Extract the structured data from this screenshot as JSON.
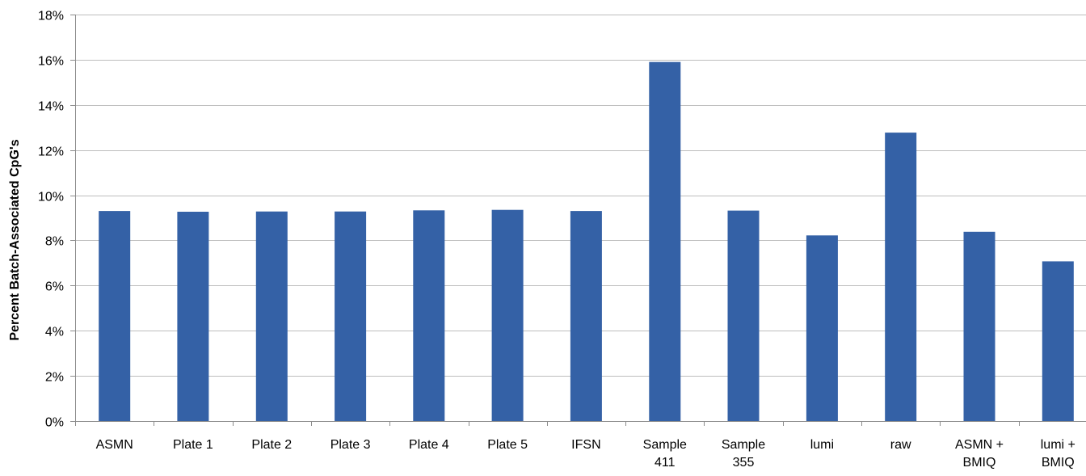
{
  "chart_data": {
    "type": "bar",
    "title": "",
    "xlabel": "",
    "ylabel": "Percent Batch-Associated CpG's",
    "ylim": [
      0,
      18
    ],
    "y_ticks": [
      0,
      2,
      4,
      6,
      8,
      10,
      12,
      14,
      16,
      18
    ],
    "y_tick_labels": [
      "0%",
      "2%",
      "4%",
      "6%",
      "8%",
      "10%",
      "12%",
      "14%",
      "16%",
      "18%"
    ],
    "grid": true,
    "legend": "none",
    "bar_color": "#3461a6",
    "categories": [
      [
        "ASMN"
      ],
      [
        "Plate 1"
      ],
      [
        "Plate 2"
      ],
      [
        "Plate 3"
      ],
      [
        "Plate 4"
      ],
      [
        "Plate 5"
      ],
      [
        "IFSN"
      ],
      [
        "Sample",
        "411"
      ],
      [
        "Sample",
        "355"
      ],
      [
        "lumi"
      ],
      [
        "raw"
      ],
      [
        "ASMN +",
        "BMIQ"
      ],
      [
        "lumi +",
        "BMIQ"
      ]
    ],
    "values": [
      9.3,
      9.27,
      9.28,
      9.28,
      9.33,
      9.35,
      9.3,
      15.9,
      9.32,
      8.22,
      12.77,
      8.38,
      7.07
    ]
  }
}
